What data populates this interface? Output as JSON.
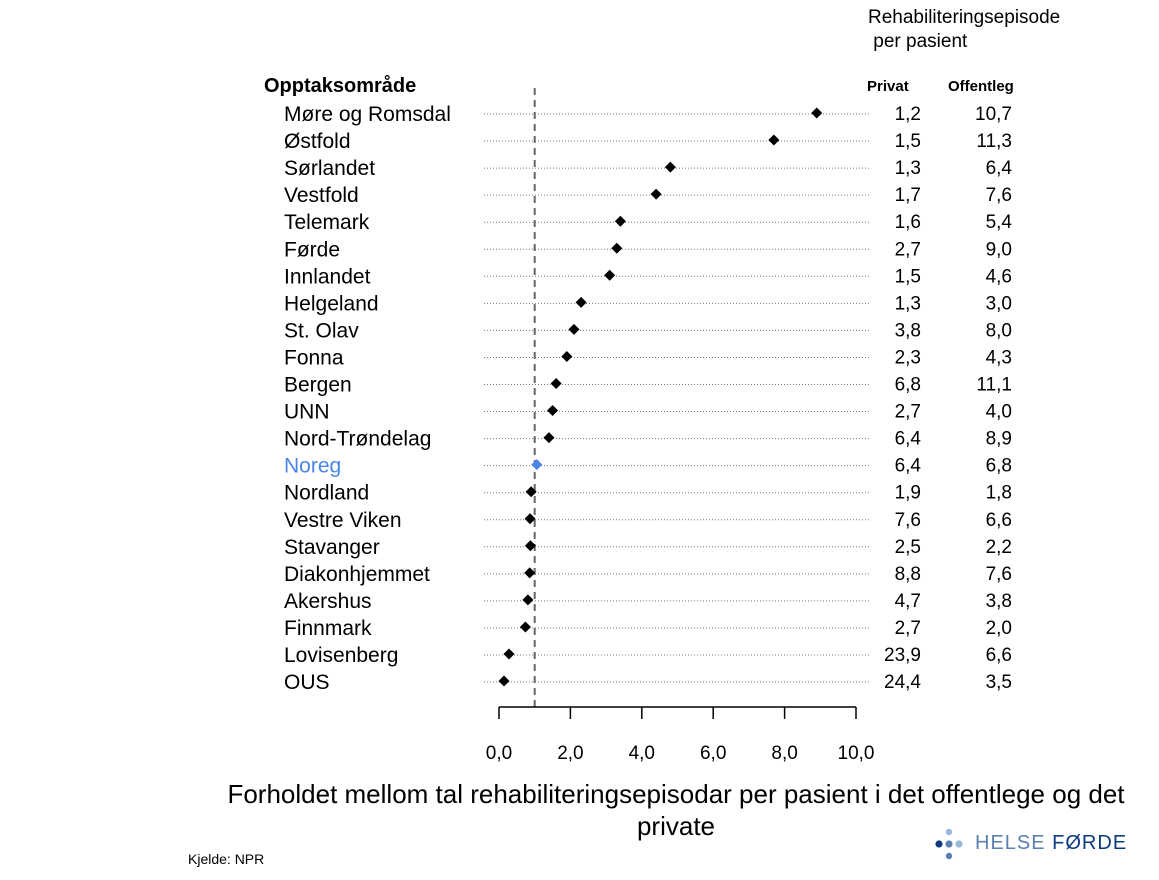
{
  "chart_data": {
    "type": "dot",
    "group_label": "Opptaksområde",
    "column_header": [
      "Rehabiliteringsepisode",
      " per pasient"
    ],
    "column_labels": {
      "privat": "Privat",
      "offentleg": "Offentleg"
    },
    "xlabel": "Forholdet mellom tal rehabiliteringsepisodar per pasient i det offentlege og det private",
    "xlim": [
      0,
      10
    ],
    "xticks": [
      0,
      2,
      4,
      6,
      8,
      10
    ],
    "xtick_labels": [
      "0,0",
      "2,0",
      "4,0",
      "6,0",
      "8,0",
      "10,0"
    ],
    "reference_line": 1.0,
    "rows": [
      {
        "name": "Møre og Romsdal",
        "value": 8.9,
        "privat": "1,2",
        "offentleg": "10,7"
      },
      {
        "name": "Østfold",
        "value": 7.7,
        "privat": "1,5",
        "offentleg": "11,3"
      },
      {
        "name": "Sørlandet",
        "value": 4.8,
        "privat": "1,3",
        "offentleg": "6,4"
      },
      {
        "name": "Vestfold",
        "value": 4.4,
        "privat": "1,7",
        "offentleg": "7,6"
      },
      {
        "name": "Telemark",
        "value": 3.4,
        "privat": "1,6",
        "offentleg": "5,4"
      },
      {
        "name": "Førde",
        "value": 3.3,
        "privat": "2,7",
        "offentleg": "9,0"
      },
      {
        "name": "Innlandet",
        "value": 3.1,
        "privat": "1,5",
        "offentleg": "4,6"
      },
      {
        "name": "Helgeland",
        "value": 2.3,
        "privat": "1,3",
        "offentleg": "3,0"
      },
      {
        "name": "St. Olav",
        "value": 2.1,
        "privat": "3,8",
        "offentleg": "8,0"
      },
      {
        "name": "Fonna",
        "value": 1.9,
        "privat": "2,3",
        "offentleg": "4,3"
      },
      {
        "name": "Bergen",
        "value": 1.6,
        "privat": "6,8",
        "offentleg": "11,1"
      },
      {
        "name": "UNN",
        "value": 1.5,
        "privat": "2,7",
        "offentleg": "4,0"
      },
      {
        "name": "Nord-Trøndelag",
        "value": 1.4,
        "privat": "6,4",
        "offentleg": "8,9"
      },
      {
        "name": "Noreg",
        "value": 1.06,
        "privat": "6,4",
        "offentleg": "6,8",
        "highlight": true
      },
      {
        "name": "Nordland",
        "value": 0.9,
        "privat": "1,9",
        "offentleg": "1,8"
      },
      {
        "name": "Vestre Viken",
        "value": 0.87,
        "privat": "7,6",
        "offentleg": "6,6"
      },
      {
        "name": "Stavanger",
        "value": 0.88,
        "privat": "2,5",
        "offentleg": "2,2"
      },
      {
        "name": "Diakonhjemmet",
        "value": 0.86,
        "privat": "8,8",
        "offentleg": "7,6"
      },
      {
        "name": "Akershus",
        "value": 0.81,
        "privat": "4,7",
        "offentleg": "3,8"
      },
      {
        "name": "Finnmark",
        "value": 0.74,
        "privat": "2,7",
        "offentleg": "2,0"
      },
      {
        "name": "Lovisenberg",
        "value": 0.28,
        "privat": "23,9",
        "offentleg": "6,6"
      },
      {
        "name": "OUS",
        "value": 0.14,
        "privat": "24,4",
        "offentleg": "3,5"
      }
    ],
    "colors": {
      "dot": "#000000",
      "highlight": "#4a86e8",
      "refline": "#666666"
    }
  },
  "source": "Kjelde: NPR",
  "logo": {
    "text_a": "HELSE ",
    "text_b": "FØRDE"
  }
}
